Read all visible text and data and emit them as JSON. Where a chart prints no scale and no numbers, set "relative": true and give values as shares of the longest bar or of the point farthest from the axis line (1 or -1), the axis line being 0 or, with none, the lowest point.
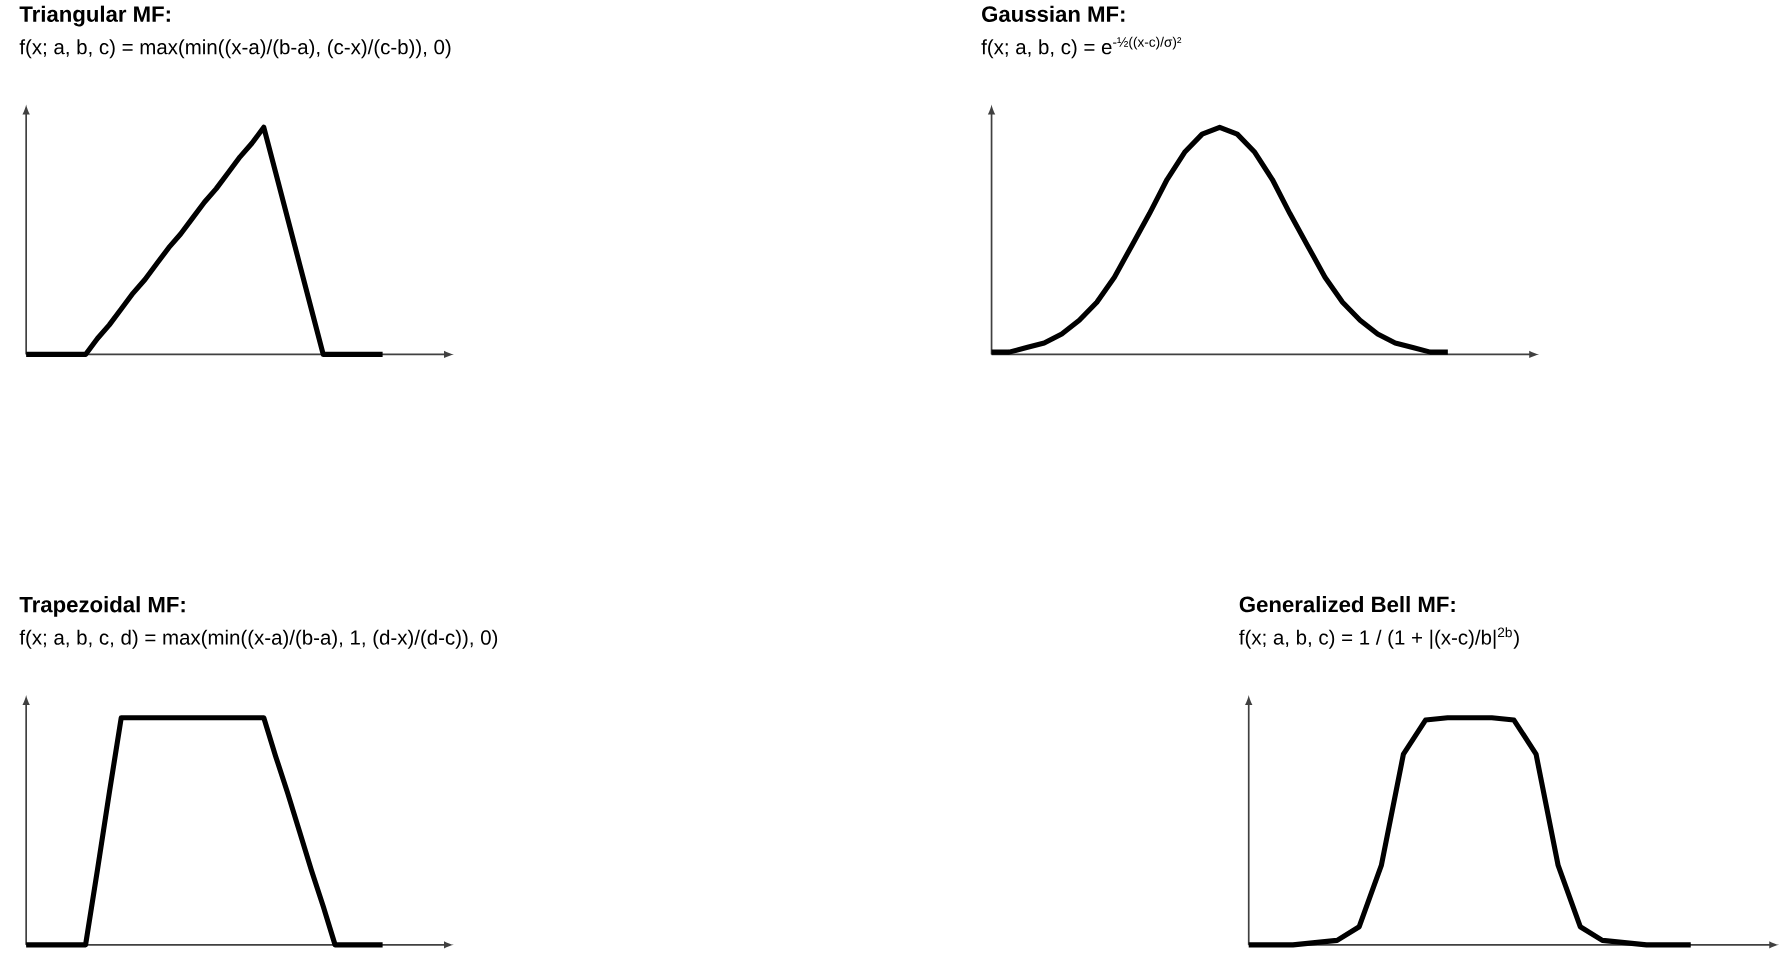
{
  "chart_data": [
    {
      "type": "line",
      "relative": true,
      "title": "Triangular MF:",
      "subtitle": "f(x; a, b, c) = max(min((x-a)/(b-a), (c-x)/(c-b)), 0)",
      "color": "#000000",
      "categories": [
        null,
        null,
        null,
        null,
        null,
        null,
        null,
        null,
        null,
        null,
        null,
        null,
        null,
        null,
        null,
        null,
        null,
        null,
        null,
        null,
        null,
        null,
        null,
        null,
        null,
        null,
        null,
        null,
        null,
        null,
        null
      ],
      "values": [
        0,
        0,
        0,
        0,
        0,
        0,
        0.07,
        0.13,
        0.2,
        0.27,
        0.33,
        0.4,
        0.47,
        0.53,
        0.6,
        0.67,
        0.73,
        0.8,
        0.87,
        0.93,
        1,
        0.8,
        0.6,
        0.4,
        0.2,
        0,
        0,
        0,
        0,
        0,
        0
      ]
    },
    {
      "type": "line",
      "relative": true,
      "title": "Gaussian MF:",
      "subtitle": "f(x; a, b, c) = e$^{-½((x-c)/σ)²}$",
      "color": "#000000",
      "categories": [
        null,
        null,
        null,
        null,
        null,
        null,
        null,
        null,
        null,
        null,
        null,
        null,
        null,
        null,
        null,
        null,
        null,
        null,
        null,
        null,
        null,
        null,
        null,
        null,
        null,
        null,
        null
      ],
      "values": [
        0.01,
        0.01,
        0.03,
        0.05,
        0.09,
        0.15,
        0.23,
        0.34,
        0.48,
        0.62,
        0.77,
        0.89,
        0.97,
        1,
        0.97,
        0.89,
        0.77,
        0.62,
        0.48,
        0.34,
        0.23,
        0.15,
        0.09,
        0.05,
        0.03,
        0.01,
        0.01
      ]
    },
    {
      "type": "line",
      "relative": true,
      "title": "Trapezoidal MF:",
      "subtitle": "f(x; a, b, c, d) = max(min((x-a)/(b-a), 1, (d-x)/(d-c)), 0)",
      "color": "#000000",
      "categories": [
        null,
        null,
        null,
        null,
        null,
        null,
        null,
        null,
        null,
        null,
        null,
        null,
        null,
        null,
        null,
        null,
        null,
        null,
        null,
        null,
        null,
        null,
        null,
        null,
        null,
        null,
        null,
        null,
        null,
        null,
        null
      ],
      "values": [
        0,
        0,
        0,
        0,
        0,
        0,
        0.33,
        0.67,
        1,
        1,
        1,
        1,
        1,
        1,
        1,
        1,
        1,
        1,
        1,
        1,
        1,
        0.83,
        0.67,
        0.5,
        0.33,
        0.17,
        0,
        0,
        0,
        0,
        0
      ]
    },
    {
      "type": "line",
      "relative": true,
      "title": "Generalized Bell MF:",
      "subtitle": "f(x; a, b, c) = 1 / (1 + |(x-c)/b|$^{2b}$)",
      "color": "#000000",
      "categories": [
        null,
        null,
        null,
        null,
        null,
        null,
        null,
        null,
        null,
        null,
        null,
        null,
        null,
        null,
        null,
        null,
        null,
        null,
        null,
        null,
        null
      ],
      "values": [
        0,
        0,
        0,
        0.01,
        0.02,
        0.08,
        0.35,
        0.84,
        0.99,
        1,
        1,
        1,
        0.99,
        0.84,
        0.35,
        0.08,
        0.02,
        0.01,
        0,
        0,
        0
      ]
    }
  ]
}
